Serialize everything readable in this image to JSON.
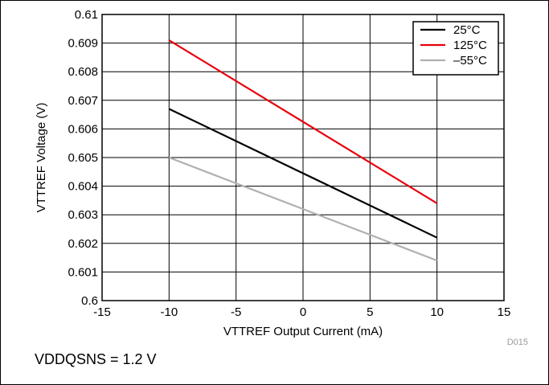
{
  "chart_data": {
    "type": "line",
    "title": "",
    "xlabel": "VTTREF Output Current (mA)",
    "ylabel": "VTTREF Voltage (V)",
    "xlim": [
      -15,
      15
    ],
    "ylim": [
      0.6,
      0.61
    ],
    "xticks": [
      "-15",
      "-10",
      "-5",
      "0",
      "5",
      "10",
      "15"
    ],
    "yticks": [
      "0.6",
      "0.601",
      "0.602",
      "0.603",
      "0.604",
      "0.605",
      "0.606",
      "0.607",
      "0.608",
      "0.609",
      "0.61"
    ],
    "grid": true,
    "legend_position": "top-right",
    "series": [
      {
        "name": "25°C",
        "color": "#000000",
        "x": [
          -10,
          10
        ],
        "y": [
          0.6067,
          0.6022
        ]
      },
      {
        "name": "125°C",
        "color": "#e8000b",
        "x": [
          -10,
          10
        ],
        "y": [
          0.6091,
          0.6034
        ]
      },
      {
        "name": "–55°C",
        "color": "#b0b0b0",
        "x": [
          -10,
          10
        ],
        "y": [
          0.605,
          0.6014
        ]
      }
    ]
  },
  "figure_code": "D015",
  "note": "VDDQSNS = 1.2 V"
}
